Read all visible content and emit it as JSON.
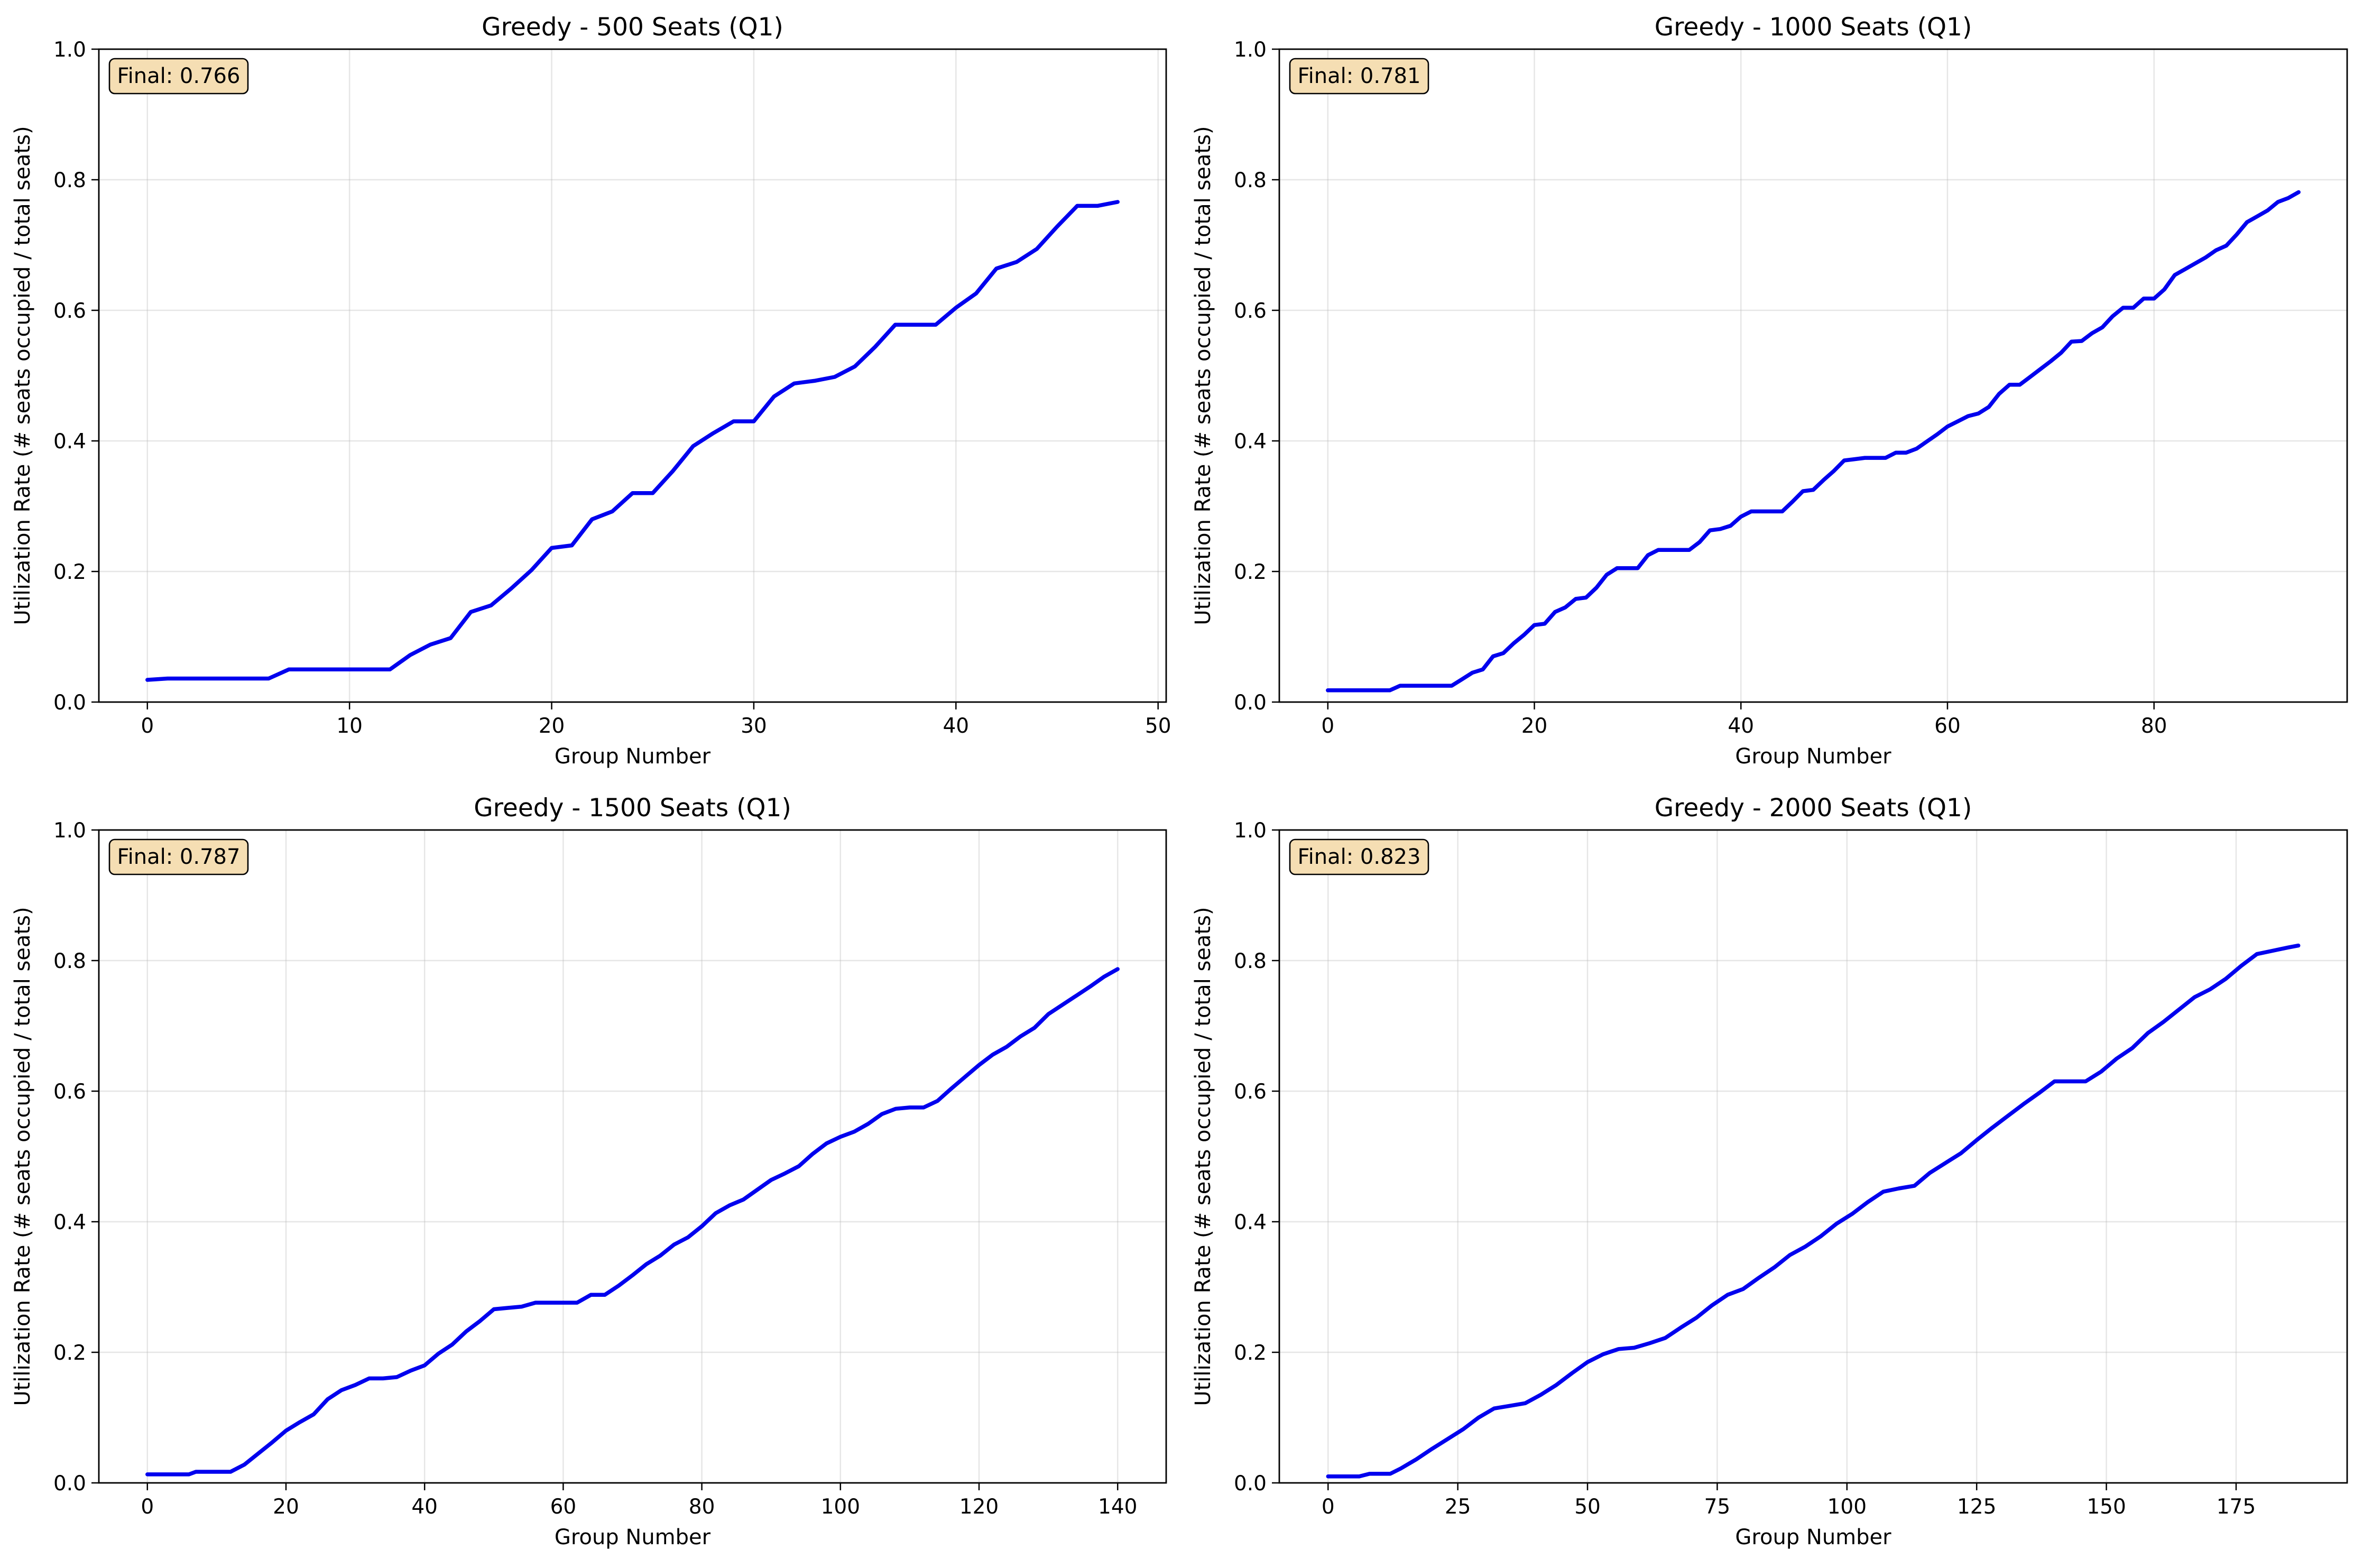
{
  "figure": {
    "background": "#ffffff",
    "line_color": "#0000ee",
    "badge_color": "#f5deb3"
  },
  "chart_data": [
    {
      "type": "line",
      "title": "Greedy - 500 Seats (Q1)",
      "xlabel": "Group Number",
      "ylabel": "Utilization Rate (# seats occupied / total seats)",
      "xlim": [
        -2.4,
        50.4
      ],
      "ylim": [
        0,
        1
      ],
      "xticks": [
        0,
        10,
        20,
        30,
        40,
        50
      ],
      "yticks": [
        0.0,
        0.2,
        0.4,
        0.6,
        0.8,
        1.0
      ],
      "xtick_labels": [
        "0",
        "10",
        "20",
        "30",
        "40",
        "50"
      ],
      "ytick_labels": [
        "0.0",
        "0.2",
        "0.4",
        "0.6",
        "0.8",
        "1.0"
      ],
      "grid": true,
      "annotation": "Final: 0.766",
      "annotation_value": 0.766,
      "series": [
        {
          "x": [
            0,
            1,
            2,
            3,
            4,
            5,
            6,
            7,
            8,
            9,
            10,
            11,
            12,
            13,
            14,
            15,
            16,
            17,
            18,
            19,
            20,
            21,
            22,
            23,
            24,
            25,
            26,
            27,
            28,
            29,
            30,
            31,
            32,
            33,
            34,
            35,
            36,
            37,
            38,
            39,
            40,
            41,
            42,
            43,
            44,
            45,
            46,
            47,
            48
          ],
          "y": [
            0.034,
            0.036,
            0.036,
            0.036,
            0.036,
            0.036,
            0.036,
            0.05,
            0.05,
            0.05,
            0.05,
            0.05,
            0.05,
            0.072,
            0.088,
            0.098,
            0.138,
            0.148,
            0.174,
            0.202,
            0.236,
            0.24,
            0.28,
            0.292,
            0.32,
            0.32,
            0.354,
            0.392,
            0.412,
            0.43,
            0.43,
            0.468,
            0.488,
            0.492,
            0.498,
            0.514,
            0.544,
            0.578,
            0.578,
            0.578,
            0.604,
            0.626,
            0.664,
            0.674,
            0.694,
            0.728,
            0.76,
            0.76,
            0.766
          ]
        }
      ]
    },
    {
      "type": "line",
      "title": "Greedy - 1000 Seats (Q1)",
      "xlabel": "Group Number",
      "ylabel": "Utilization Rate (# seats occupied / total seats)",
      "xlim": [
        -4.7,
        98.7
      ],
      "ylim": [
        0,
        1
      ],
      "xticks": [
        0,
        20,
        40,
        60,
        80
      ],
      "yticks": [
        0.0,
        0.2,
        0.4,
        0.6,
        0.8,
        1.0
      ],
      "xtick_labels": [
        "0",
        "20",
        "40",
        "60",
        "80"
      ],
      "ytick_labels": [
        "0.0",
        "0.2",
        "0.4",
        "0.6",
        "0.8",
        "1.0"
      ],
      "grid": true,
      "annotation": "Final: 0.781",
      "annotation_value": 0.781,
      "series": [
        {
          "x": [
            0,
            6,
            7,
            12,
            13,
            14,
            15,
            16,
            17,
            18,
            19,
            20,
            21,
            22,
            23,
            24,
            25,
            26,
            27,
            28,
            29,
            30,
            31,
            32,
            33,
            34,
            35,
            36,
            37,
            38,
            39,
            40,
            41,
            42,
            43,
            44,
            45,
            46,
            47,
            48,
            49,
            50,
            51,
            52,
            53,
            54,
            55,
            56,
            57,
            58,
            59,
            60,
            61,
            62,
            63,
            64,
            65,
            66,
            67,
            68,
            69,
            70,
            71,
            72,
            73,
            74,
            75,
            76,
            77,
            78,
            79,
            80,
            81,
            82,
            83,
            84,
            85,
            86,
            87,
            88,
            89,
            90,
            91,
            92,
            93,
            94
          ],
          "y": [
            0.018,
            0.018,
            0.025,
            0.025,
            0.035,
            0.045,
            0.05,
            0.07,
            0.075,
            0.09,
            0.103,
            0.118,
            0.12,
            0.138,
            0.145,
            0.158,
            0.16,
            0.175,
            0.195,
            0.205,
            0.205,
            0.205,
            0.225,
            0.233,
            0.233,
            0.233,
            0.233,
            0.245,
            0.263,
            0.265,
            0.27,
            0.284,
            0.292,
            0.292,
            0.292,
            0.292,
            0.307,
            0.323,
            0.325,
            0.34,
            0.354,
            0.37,
            0.372,
            0.374,
            0.374,
            0.374,
            0.382,
            0.382,
            0.388,
            0.399,
            0.41,
            0.422,
            0.43,
            0.438,
            0.442,
            0.452,
            0.472,
            0.486,
            0.486,
            0.498,
            0.51,
            0.522,
            0.535,
            0.552,
            0.553,
            0.565,
            0.574,
            0.591,
            0.604,
            0.604,
            0.618,
            0.618,
            0.632,
            0.654,
            0.663,
            0.672,
            0.681,
            0.692,
            0.699,
            0.716,
            0.735,
            0.744,
            0.753,
            0.766,
            0.772,
            0.781
          ]
        }
      ]
    },
    {
      "type": "line",
      "title": "Greedy - 1500 Seats (Q1)",
      "xlabel": "Group Number",
      "ylabel": "Utilization Rate (# seats occupied / total seats)",
      "xlim": [
        -7.0,
        147.0
      ],
      "ylim": [
        0,
        1
      ],
      "xticks": [
        0,
        20,
        40,
        60,
        80,
        100,
        120,
        140
      ],
      "yticks": [
        0.0,
        0.2,
        0.4,
        0.6,
        0.8,
        1.0
      ],
      "xtick_labels": [
        "0",
        "20",
        "40",
        "60",
        "80",
        "100",
        "120",
        "140"
      ],
      "ytick_labels": [
        "0.0",
        "0.2",
        "0.4",
        "0.6",
        "0.8",
        "1.0"
      ],
      "grid": true,
      "annotation": "Final: 0.787",
      "annotation_value": 0.787,
      "series": [
        {
          "x": [
            0,
            6,
            7,
            12,
            14,
            16,
            18,
            20,
            22,
            24,
            26,
            28,
            30,
            32,
            34,
            36,
            38,
            40,
            42,
            44,
            46,
            48,
            50,
            52,
            54,
            56,
            58,
            60,
            62,
            64,
            66,
            68,
            70,
            72,
            74,
            76,
            78,
            80,
            82,
            84,
            86,
            88,
            90,
            92,
            94,
            96,
            98,
            100,
            102,
            104,
            106,
            108,
            110,
            112,
            114,
            116,
            118,
            120,
            122,
            124,
            126,
            128,
            130,
            132,
            134,
            136,
            138,
            140
          ],
          "y": [
            0.013,
            0.013,
            0.017,
            0.017,
            0.028,
            0.045,
            0.062,
            0.08,
            0.093,
            0.105,
            0.128,
            0.142,
            0.15,
            0.16,
            0.16,
            0.162,
            0.172,
            0.18,
            0.198,
            0.212,
            0.232,
            0.248,
            0.266,
            0.268,
            0.27,
            0.276,
            0.276,
            0.276,
            0.276,
            0.288,
            0.288,
            0.302,
            0.318,
            0.335,
            0.348,
            0.365,
            0.376,
            0.393,
            0.413,
            0.425,
            0.434,
            0.449,
            0.464,
            0.474,
            0.485,
            0.504,
            0.52,
            0.53,
            0.538,
            0.55,
            0.565,
            0.573,
            0.575,
            0.575,
            0.585,
            0.604,
            0.622,
            0.64,
            0.656,
            0.668,
            0.684,
            0.697,
            0.718,
            0.732,
            0.746,
            0.76,
            0.775,
            0.787
          ]
        }
      ]
    },
    {
      "type": "line",
      "title": "Greedy - 2000 Seats (Q1)",
      "xlabel": "Group Number",
      "ylabel": "Utilization Rate (# seats occupied / total seats)",
      "xlim": [
        -9.4,
        196.4
      ],
      "ylim": [
        0,
        1
      ],
      "xticks": [
        0,
        25,
        50,
        75,
        100,
        125,
        150,
        175
      ],
      "yticks": [
        0.0,
        0.2,
        0.4,
        0.6,
        0.8,
        1.0
      ],
      "xtick_labels": [
        "0",
        "25",
        "50",
        "75",
        "100",
        "125",
        "150",
        "175"
      ],
      "ytick_labels": [
        "0.0",
        "0.2",
        "0.4",
        "0.6",
        "0.8",
        "1.0"
      ],
      "grid": true,
      "annotation": "Final: 0.823",
      "annotation_value": 0.823,
      "series": [
        {
          "x": [
            0,
            6,
            8,
            12,
            14,
            17,
            20,
            23,
            26,
            29,
            32,
            35,
            38,
            41,
            44,
            47,
            50,
            53,
            56,
            59,
            62,
            65,
            68,
            71,
            74,
            77,
            80,
            83,
            86,
            89,
            92,
            95,
            98,
            101,
            104,
            107,
            110,
            113,
            116,
            119,
            122,
            125,
            128,
            131,
            134,
            137,
            140,
            143,
            146,
            149,
            152,
            155,
            158,
            161,
            164,
            167,
            170,
            173,
            176,
            179,
            182,
            185,
            187
          ],
          "y": [
            0.01,
            0.01,
            0.014,
            0.014,
            0.022,
            0.036,
            0.052,
            0.067,
            0.082,
            0.1,
            0.114,
            0.118,
            0.122,
            0.135,
            0.15,
            0.168,
            0.185,
            0.197,
            0.205,
            0.207,
            0.214,
            0.222,
            0.238,
            0.253,
            0.272,
            0.288,
            0.297,
            0.314,
            0.33,
            0.349,
            0.362,
            0.378,
            0.397,
            0.412,
            0.43,
            0.446,
            0.451,
            0.455,
            0.475,
            0.49,
            0.505,
            0.525,
            0.544,
            0.562,
            0.58,
            0.597,
            0.615,
            0.615,
            0.615,
            0.63,
            0.65,
            0.666,
            0.689,
            0.706,
            0.725,
            0.744,
            0.756,
            0.772,
            0.792,
            0.81,
            0.815,
            0.82,
            0.823
          ]
        }
      ]
    }
  ]
}
